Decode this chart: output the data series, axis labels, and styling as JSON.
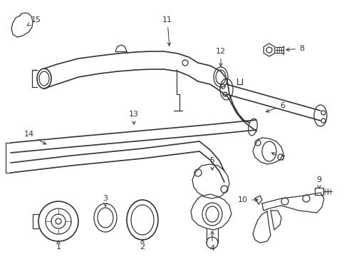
{
  "background_color": "#ffffff",
  "fig_width": 4.9,
  "fig_height": 3.6,
  "dpi": 100,
  "gray": "#333333",
  "lw": 0.9
}
